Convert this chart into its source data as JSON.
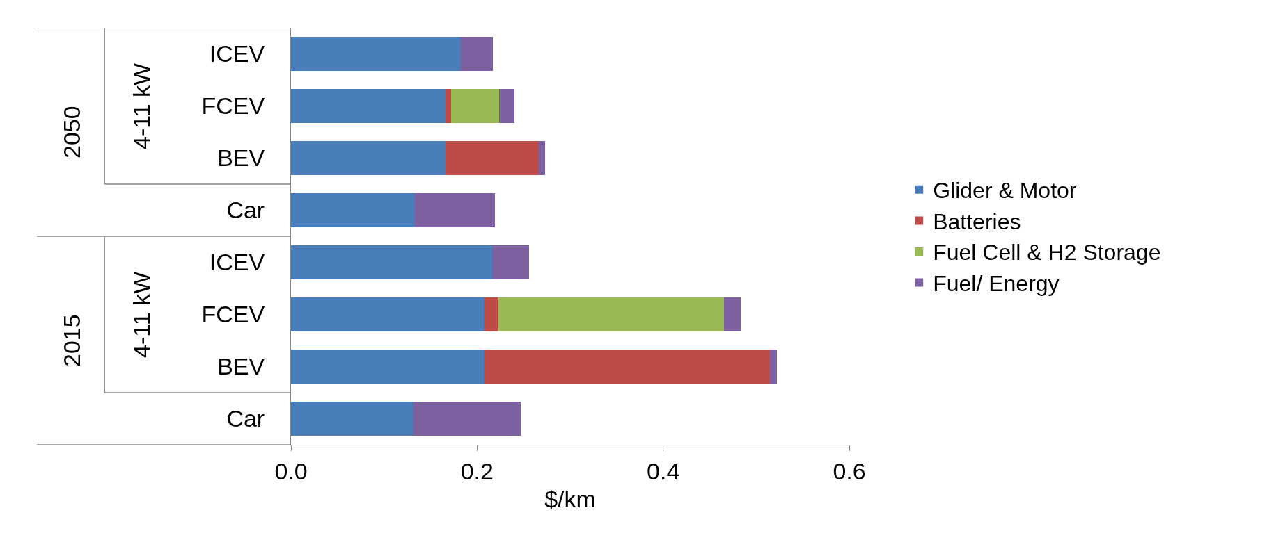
{
  "chart_data": {
    "type": "bar",
    "orientation": "horizontal",
    "stacked": true,
    "xlabel": "$/km",
    "categories": [
      "ICEV",
      "FCEV",
      "BEV",
      "Car",
      "ICEV",
      "FCEV",
      "BEV",
      "Car"
    ],
    "series": [
      {
        "name": "Glider & Motor",
        "color": "#4a7ebb",
        "values": [
          0.182,
          0.166,
          0.166,
          0.133,
          0.216,
          0.207,
          0.207,
          0.131
        ]
      },
      {
        "name": "Batteries",
        "color": "#be4b48",
        "values": [
          null,
          0.006,
          0.1,
          null,
          null,
          0.015,
          0.307,
          null
        ]
      },
      {
        "name": "Fuel Cell & H2 Storage",
        "color": "#98b954",
        "values": [
          null,
          0.052,
          null,
          null,
          null,
          0.243,
          null,
          null
        ]
      },
      {
        "name": "Fuel/ Energy",
        "color": "#7d60a0",
        "values": [
          0.035,
          0.016,
          0.007,
          0.086,
          0.04,
          0.018,
          0.008,
          0.116
        ]
      }
    ],
    "xlim": [
      0,
      0.6
    ],
    "xticks": [
      {
        "value": 0,
        "label": "0.0"
      },
      {
        "value": 0.2,
        "label": "0.2"
      },
      {
        "value": 0.4,
        "label": "0.4"
      },
      {
        "value": 0.6,
        "label": "0.6"
      }
    ],
    "annotations": [
      "2050",
      "4-11 kW",
      "2015",
      "4-11 kW"
    ],
    "grid": false,
    "legend": "right"
  }
}
